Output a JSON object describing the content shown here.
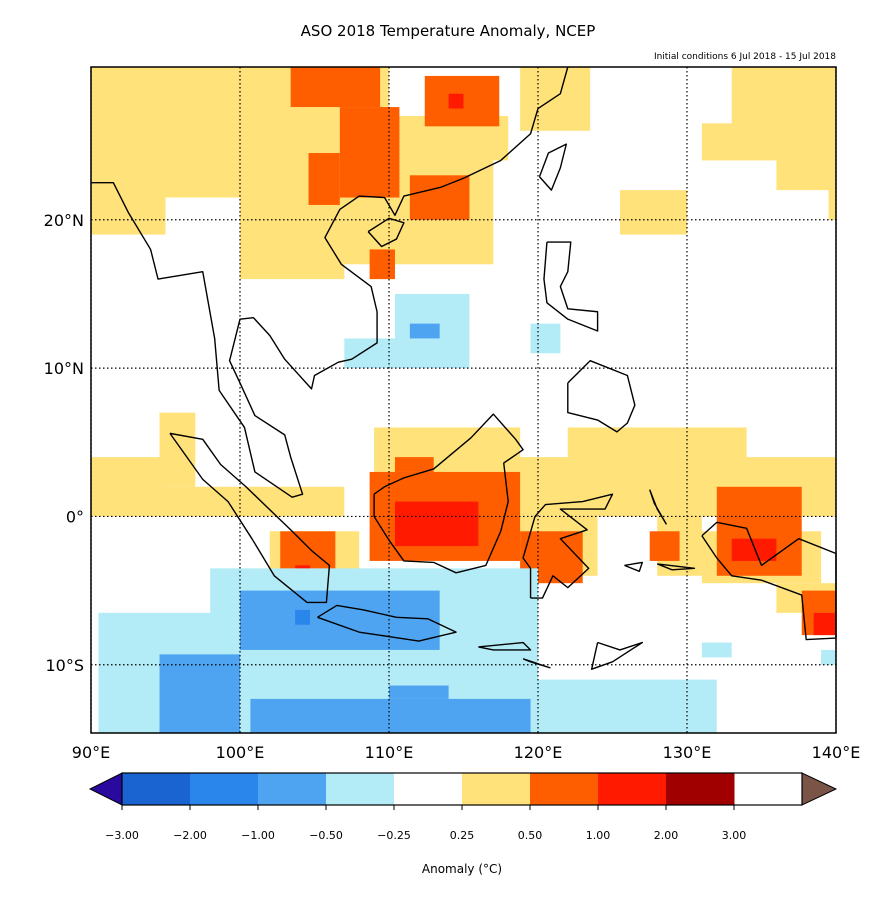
{
  "title": "ASO 2018 Temperature Anomaly, NCEP",
  "subtitle": "Initial conditions 6 Jul 2018 - 15 Jul 2018",
  "map": {
    "lon_range": [
      90,
      140
    ],
    "lat_range": [
      -14.6,
      30.3
    ],
    "lon_ticks": [
      90,
      100,
      110,
      120,
      130,
      140
    ],
    "lon_tick_labels": [
      "90°E",
      "100°E",
      "110°E",
      "120°E",
      "130°E",
      "140°E"
    ],
    "lat_ticks": [
      20,
      10,
      0,
      -10
    ],
    "lat_tick_labels": [
      "20°N",
      "10°N",
      "0°",
      "10°S"
    ],
    "gridlines": "dotted",
    "anomaly_cells": [
      [
        90,
        110,
        21.5,
        30.3,
        6
      ],
      [
        90,
        95,
        19,
        22,
        6
      ],
      [
        100,
        107,
        16,
        22,
        6
      ],
      [
        106,
        117,
        17,
        24,
        6
      ],
      [
        110,
        118,
        24,
        27,
        6
      ],
      [
        118.8,
        123.5,
        26,
        30.3,
        6
      ],
      [
        125.5,
        130,
        19,
        22,
        6
      ],
      [
        131,
        140,
        24,
        26.5,
        6
      ],
      [
        133,
        140,
        26,
        30.3,
        6
      ],
      [
        136,
        140,
        22,
        24,
        6
      ],
      [
        139.5,
        140,
        20,
        30.3,
        6
      ],
      [
        90,
        95,
        0,
        4,
        6
      ],
      [
        94.6,
        97,
        2,
        7,
        6
      ],
      [
        95,
        107,
        0,
        2,
        6
      ],
      [
        109,
        118.8,
        1,
        6,
        6
      ],
      [
        122,
        134,
        0,
        6,
        6
      ],
      [
        118,
        140,
        0,
        4,
        6
      ],
      [
        118.8,
        124,
        -4,
        0,
        6
      ],
      [
        128,
        131,
        -4,
        0,
        6
      ],
      [
        131,
        139,
        -4.5,
        -1,
        6
      ],
      [
        136,
        140,
        -6.5,
        -4.5,
        6
      ],
      [
        102,
        108,
        -7.5,
        -1,
        6
      ],
      [
        107,
        114,
        -8,
        -6.5,
        6
      ],
      [
        103.4,
        109.4,
        27.6,
        30.3,
        7
      ],
      [
        106.7,
        110.7,
        21.5,
        27.6,
        7
      ],
      [
        104.6,
        106.7,
        21,
        24.5,
        7
      ],
      [
        112.4,
        117.4,
        26.3,
        29.7,
        7
      ],
      [
        111.4,
        115.4,
        20,
        23,
        7
      ],
      [
        108.7,
        110.4,
        16,
        18,
        7
      ],
      [
        108.7,
        118.8,
        -3,
        3,
        7
      ],
      [
        110.4,
        113,
        3,
        4,
        7
      ],
      [
        118.8,
        123,
        -4.5,
        -1,
        7
      ],
      [
        127.5,
        129.5,
        -3,
        -1,
        7
      ],
      [
        132,
        137.7,
        -4,
        2,
        7
      ],
      [
        137.7,
        140,
        -8,
        -5,
        7
      ],
      [
        102.7,
        106.4,
        -4.5,
        -1,
        7
      ],
      [
        106.4,
        107.4,
        -6.5,
        -5,
        7
      ],
      [
        114,
        115,
        27.5,
        28.5,
        8
      ],
      [
        110.4,
        116,
        -2,
        1,
        8
      ],
      [
        133,
        136,
        -3,
        -1.5,
        8
      ],
      [
        138.5,
        140,
        -8,
        -6.5,
        8
      ],
      [
        103.7,
        104.7,
        -4.3,
        -3.3,
        8
      ],
      [
        110.4,
        115.4,
        10,
        15,
        4
      ],
      [
        107,
        110.4,
        10,
        12,
        4
      ],
      [
        119.5,
        121.5,
        11,
        13,
        4
      ],
      [
        90.5,
        100,
        -14.6,
        -6.5,
        4
      ],
      [
        98,
        120,
        -14.6,
        -3.5,
        4
      ],
      [
        120,
        132,
        -14.6,
        -11,
        4
      ],
      [
        131,
        133,
        -9.5,
        -8.5,
        4
      ],
      [
        139,
        140,
        -10,
        -9,
        4
      ],
      [
        111.4,
        113.4,
        12,
        13,
        3
      ],
      [
        100,
        113.4,
        -9,
        -5,
        3
      ],
      [
        94.6,
        100,
        -14.6,
        -9.3,
        3
      ],
      [
        100.7,
        119.5,
        -14.6,
        -12.3,
        3
      ],
      [
        110,
        114,
        -12.3,
        -11.4,
        3
      ],
      [
        103.7,
        104.7,
        -7.3,
        -6.3,
        2
      ]
    ]
  },
  "colorbar": {
    "label": "Anomaly (°C)",
    "tick_labels": [
      "−3.00",
      "−2.00",
      "−1.00",
      "−0.50",
      "−0.25",
      "0.25",
      "0.50",
      "1.00",
      "2.00",
      "3.00"
    ],
    "colors": [
      "#2a0a9e",
      "#1a64d2",
      "#2a86ea",
      "#4ea4f0",
      "#b3ecf6",
      "#ffffff",
      "#ffe27a",
      "#ff5e00",
      "#ff1a00",
      "#a00000",
      "#7b5448"
    ]
  }
}
